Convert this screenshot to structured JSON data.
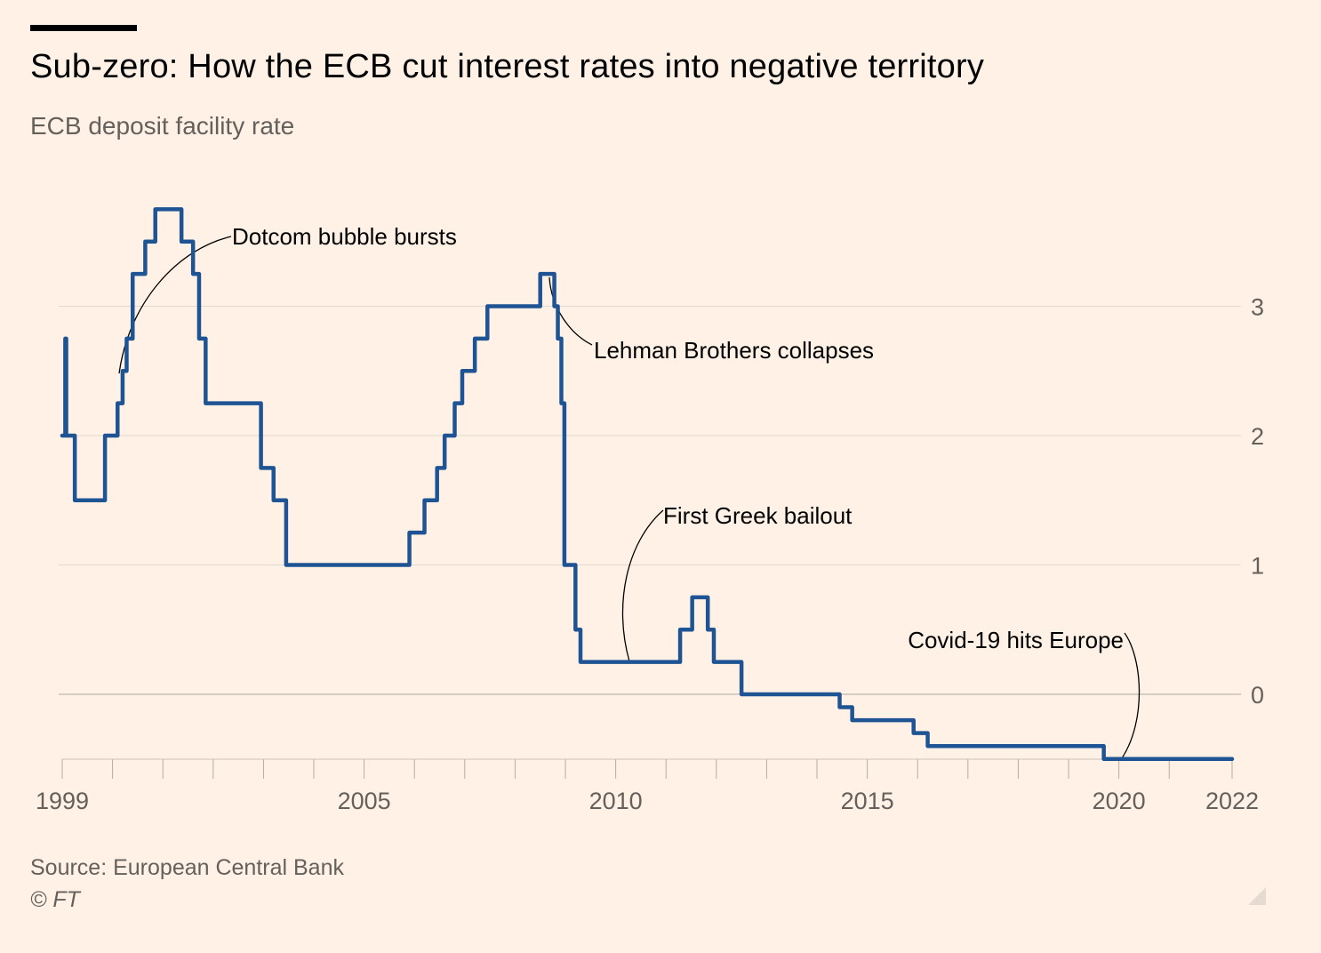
{
  "title": "Sub-zero: How the ECB cut interest rates into negative territory",
  "subtitle": "ECB deposit facility rate",
  "source": "Source: European Central Bank",
  "copyright": "© FT",
  "colors": {
    "background": "#fff1e5",
    "line": "#1f5494",
    "grid": "#e3d9cf",
    "axis": "#66605c",
    "text": "#33302e"
  },
  "icons": {
    "top_bar": "ft-accent-bar",
    "corner": "resize-handle-icon"
  },
  "chart_data": {
    "type": "line",
    "title": "Sub-zero: How the ECB cut interest rates into negative territory",
    "ylabel": "ECB deposit facility rate",
    "xlabel": "",
    "xlim": [
      1999,
      2022.3
    ],
    "ylim": [
      -0.5,
      3.75
    ],
    "x_tick_labels": [
      {
        "value": 1999,
        "label": "1999"
      },
      {
        "value": 2005,
        "label": "2005"
      },
      {
        "value": 2010,
        "label": "2010"
      },
      {
        "value": 2015,
        "label": "2015"
      },
      {
        "value": 2020,
        "label": "2020"
      },
      {
        "value": 2022.25,
        "label": "2022"
      }
    ],
    "x_minor_ticks": [
      2000,
      2001,
      2002,
      2003,
      2004,
      2006,
      2007,
      2008,
      2009,
      2011,
      2012,
      2013,
      2014,
      2016,
      2017,
      2018,
      2019,
      2021
    ],
    "y_ticks": [
      0,
      1,
      2,
      3
    ],
    "grid": true,
    "series": [
      {
        "name": "ECB deposit facility rate",
        "step": true,
        "points": [
          [
            1999.0,
            2.0
          ],
          [
            1999.06,
            2.75
          ],
          [
            1999.08,
            2.0
          ],
          [
            1999.25,
            1.5
          ],
          [
            1999.85,
            2.0
          ],
          [
            2000.1,
            2.25
          ],
          [
            2000.2,
            2.5
          ],
          [
            2000.28,
            2.75
          ],
          [
            2000.4,
            3.25
          ],
          [
            2000.65,
            3.5
          ],
          [
            2000.85,
            3.75
          ],
          [
            2001.37,
            3.5
          ],
          [
            2001.6,
            3.25
          ],
          [
            2001.72,
            2.75
          ],
          [
            2001.85,
            2.25
          ],
          [
            2002.95,
            1.75
          ],
          [
            2003.2,
            1.5
          ],
          [
            2003.45,
            1.0
          ],
          [
            2005.9,
            1.25
          ],
          [
            2006.2,
            1.5
          ],
          [
            2006.45,
            1.75
          ],
          [
            2006.6,
            2.0
          ],
          [
            2006.8,
            2.25
          ],
          [
            2006.95,
            2.5
          ],
          [
            2007.2,
            2.75
          ],
          [
            2007.45,
            3.0
          ],
          [
            2008.5,
            3.25
          ],
          [
            2008.78,
            3.0
          ],
          [
            2008.85,
            2.75
          ],
          [
            2008.92,
            2.25
          ],
          [
            2008.98,
            1.0
          ],
          [
            2009.2,
            0.5
          ],
          [
            2009.3,
            0.25
          ],
          [
            2011.28,
            0.5
          ],
          [
            2011.52,
            0.75
          ],
          [
            2011.83,
            0.5
          ],
          [
            2011.95,
            0.25
          ],
          [
            2012.5,
            0.0
          ],
          [
            2014.45,
            -0.1
          ],
          [
            2014.7,
            -0.2
          ],
          [
            2015.92,
            -0.3
          ],
          [
            2016.2,
            -0.4
          ],
          [
            2019.7,
            -0.5
          ],
          [
            2022.25,
            -0.5
          ]
        ]
      }
    ],
    "annotations": [
      {
        "text": "Dotcom bubble bursts",
        "x": 2000.2,
        "y": 2.6
      },
      {
        "text": "Lehman Brothers collapses",
        "x": 2008.75,
        "y": 3.25
      },
      {
        "text": "First Greek bailout",
        "x": 2010.2,
        "y": 0.25
      },
      {
        "text": "Covid-19 hits Europe",
        "x": 2020.05,
        "y": -0.5
      }
    ]
  }
}
